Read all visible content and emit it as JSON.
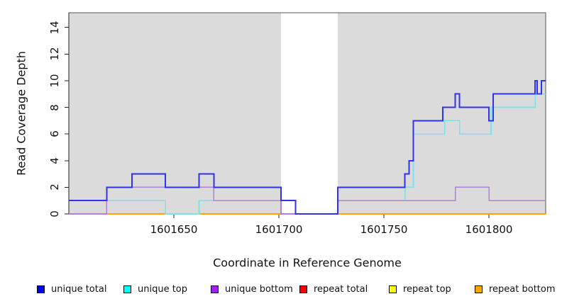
{
  "chart_data": {
    "type": "line",
    "subtype": "step-coverage",
    "title": "",
    "xlabel": "Coordinate in Reference Genome",
    "ylabel": "Read Coverage Depth",
    "xlim": [
      1601600,
      1601827
    ],
    "ylim": [
      0,
      15.1
    ],
    "xticks": [
      1601650,
      1601700,
      1601750,
      1601800
    ],
    "yticks": [
      0,
      2,
      4,
      6,
      8,
      10,
      12,
      14
    ],
    "grid": false,
    "legend_position": "bottom",
    "shade_color": "#dbdbdb",
    "shaded_regions": [
      {
        "x0": 1601600,
        "x1": 1601701
      },
      {
        "x0": 1601728,
        "x1": 1601827
      }
    ],
    "series": [
      {
        "name": "repeat total",
        "legend_color": "#ff0000",
        "line_color": "#ff2020",
        "line_width": 1.4,
        "steps": [
          [
            1601600,
            0
          ]
        ]
      },
      {
        "name": "repeat top",
        "legend_color": "#ffff00",
        "line_color": "#ffff00",
        "line_width": 1.4,
        "steps": [
          [
            1601600,
            0
          ]
        ]
      },
      {
        "name": "repeat bottom",
        "legend_color": "#ffa500",
        "line_color": "#ffa500",
        "line_width": 1.6,
        "steps": [
          [
            1601600,
            0
          ]
        ]
      },
      {
        "name": "unique top",
        "legend_color": "#00ffff",
        "line_color": "#7de2e8",
        "line_width": 1.6,
        "steps": [
          [
            1601600,
            1
          ],
          [
            1601646,
            0
          ],
          [
            1601662,
            1
          ],
          [
            1601708,
            0
          ],
          [
            1601728,
            1
          ],
          [
            1601760,
            2
          ],
          [
            1601764,
            6
          ],
          [
            1601779,
            7
          ],
          [
            1601786,
            6
          ],
          [
            1601801,
            8
          ],
          [
            1601822,
            9
          ]
        ]
      },
      {
        "name": "unique bottom",
        "legend_color": "#a020f0",
        "line_color": "#b27fe0",
        "line_width": 1.6,
        "steps": [
          [
            1601600,
            0
          ],
          [
            1601618,
            2
          ],
          [
            1601669,
            1
          ],
          [
            1601701,
            0
          ],
          [
            1601728,
            1
          ],
          [
            1601784,
            2
          ],
          [
            1601800,
            1
          ]
        ]
      },
      {
        "name": "unique total",
        "legend_color": "#0000ee",
        "line_color": "#3232e8",
        "line_width": 2,
        "steps": [
          [
            1601600,
            1
          ],
          [
            1601618,
            2
          ],
          [
            1601630,
            3
          ],
          [
            1601646,
            2
          ],
          [
            1601662,
            3
          ],
          [
            1601669,
            2
          ],
          [
            1601701,
            1
          ],
          [
            1601708,
            0
          ],
          [
            1601728,
            2
          ],
          [
            1601760,
            3
          ],
          [
            1601762,
            4
          ],
          [
            1601764,
            7
          ],
          [
            1601778,
            8
          ],
          [
            1601784,
            9
          ],
          [
            1601786,
            8
          ],
          [
            1601800,
            7
          ],
          [
            1601802,
            9
          ],
          [
            1601822,
            10
          ],
          [
            1601823,
            9
          ],
          [
            1601825,
            10
          ]
        ]
      }
    ],
    "legend_order": [
      "unique total",
      "unique top",
      "unique bottom",
      "repeat total",
      "repeat top",
      "repeat bottom"
    ]
  }
}
